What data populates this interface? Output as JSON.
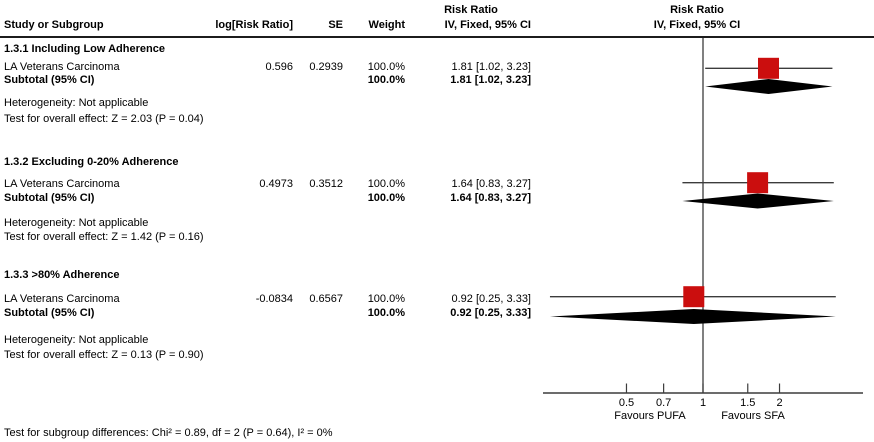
{
  "colors": {
    "square_red": "#cb0e0e",
    "diamond_black": "#000000",
    "line_gray": "#3c3c3c",
    "text_black": "#000000",
    "background": "#ffffff"
  },
  "headers": {
    "study": "Study or Subgroup",
    "log_rr": "log[Risk Ratio]",
    "se": "SE",
    "weight": "Weight",
    "effect_line1": "Risk Ratio",
    "effect_line2": "IV, Fixed, 95% CI"
  },
  "plot_headers": {
    "line1": "Risk Ratio",
    "line2": "IV, Fixed, 95% CI"
  },
  "sections": [
    {
      "title": "1.3.1 Including Low Adherence",
      "study": {
        "name": "LA Veterans Carcinoma",
        "log_rr": "0.596",
        "se": "0.2939",
        "weight": "100.0%",
        "ci_text": "1.81 [1.02, 3.23]",
        "rr": 1.81,
        "ci_low": 1.02,
        "ci_high": 3.23
      },
      "subtotal": {
        "label": "Subtotal (95% CI)",
        "weight": "100.0%",
        "ci_text": "1.81 [1.02, 3.23]",
        "rr": 1.81,
        "ci_low": 1.02,
        "ci_high": 3.23
      },
      "heterogeneity": "Heterogeneity: Not applicable",
      "overall_effect": "Test for overall effect: Z = 2.03 (P = 0.04)"
    },
    {
      "title": "1.3.2 Excluding 0-20% Adherence",
      "study": {
        "name": "LA Veterans Carcinoma",
        "log_rr": "0.4973",
        "se": "0.3512",
        "weight": "100.0%",
        "ci_text": "1.64 [0.83, 3.27]",
        "rr": 1.64,
        "ci_low": 0.83,
        "ci_high": 3.27
      },
      "subtotal": {
        "label": "Subtotal (95% CI)",
        "weight": "100.0%",
        "ci_text": "1.64 [0.83, 3.27]",
        "rr": 1.64,
        "ci_low": 0.83,
        "ci_high": 3.27
      },
      "heterogeneity": "Heterogeneity: Not applicable",
      "overall_effect": "Test for overall effect: Z = 1.42 (P = 0.16)"
    },
    {
      "title": "1.3.3 >80% Adherence",
      "study": {
        "name": "LA Veterans Carcinoma",
        "log_rr": "-0.0834",
        "se": "0.6567",
        "weight": "100.0%",
        "ci_text": "0.92 [0.25, 3.33]",
        "rr": 0.92,
        "ci_low": 0.25,
        "ci_high": 3.33
      },
      "subtotal": {
        "label": "Subtotal (95% CI)",
        "weight": "100.0%",
        "ci_text": "0.92 [0.25, 3.33]",
        "rr": 0.92,
        "ci_low": 0.25,
        "ci_high": 3.33
      },
      "heterogeneity": "Heterogeneity: Not applicable",
      "overall_effect": "Test for overall effect: Z = 0.13 (P = 0.90)"
    }
  ],
  "footer": {
    "subgroup_differences": "Test for subgroup differences: Chi² = 0.89, df = 2 (P = 0.64), I² = 0%"
  },
  "axis": {
    "scale": "log",
    "ticks": [
      0.5,
      0.7,
      1,
      1.5,
      2
    ],
    "tick_labels": [
      "0.5",
      "0.7",
      "1",
      "1.5",
      "2"
    ],
    "null_line": 1,
    "favours_left": "Favours PUFA",
    "favours_right": "Favours SFA"
  },
  "chart_data": {
    "type": "forest",
    "title": "Risk Ratio, IV, Fixed, 95% CI",
    "x_scale": "log",
    "x_ticks": [
      0.5,
      0.7,
      1,
      1.5,
      2
    ],
    "x_range_approx": [
      0.23,
      4.3
    ],
    "null_line": 1,
    "favours": [
      "Favours PUFA",
      "Favours SFA"
    ],
    "subgroups": [
      {
        "name": "1.3.1 Including Low Adherence",
        "studies": [
          {
            "label": "LA Veterans Carcinoma",
            "log_rr": 0.596,
            "se": 0.2939,
            "weight_pct": 100.0,
            "rr": 1.81,
            "ci": [
              1.02,
              3.23
            ]
          }
        ],
        "subtotal": {
          "rr": 1.81,
          "ci": [
            1.02,
            3.23
          ],
          "weight_pct": 100.0
        },
        "heterogeneity": "Not applicable",
        "overall_effect": {
          "Z": 2.03,
          "P": 0.04
        }
      },
      {
        "name": "1.3.2 Excluding 0-20% Adherence",
        "studies": [
          {
            "label": "LA Veterans Carcinoma",
            "log_rr": 0.4973,
            "se": 0.3512,
            "weight_pct": 100.0,
            "rr": 1.64,
            "ci": [
              0.83,
              3.27
            ]
          }
        ],
        "subtotal": {
          "rr": 1.64,
          "ci": [
            0.83,
            3.27
          ],
          "weight_pct": 100.0
        },
        "heterogeneity": "Not applicable",
        "overall_effect": {
          "Z": 1.42,
          "P": 0.16
        }
      },
      {
        "name": "1.3.3 >80% Adherence",
        "studies": [
          {
            "label": "LA Veterans Carcinoma",
            "log_rr": -0.0834,
            "se": 0.6567,
            "weight_pct": 100.0,
            "rr": 0.92,
            "ci": [
              0.25,
              3.33
            ]
          }
        ],
        "subtotal": {
          "rr": 0.92,
          "ci": [
            0.25,
            3.33
          ],
          "weight_pct": 100.0
        },
        "heterogeneity": "Not applicable",
        "overall_effect": {
          "Z": 0.13,
          "P": 0.9
        }
      }
    ],
    "subgroup_difference_test": {
      "chi2": 0.89,
      "df": 2,
      "P": 0.64,
      "I2_pct": 0
    }
  }
}
